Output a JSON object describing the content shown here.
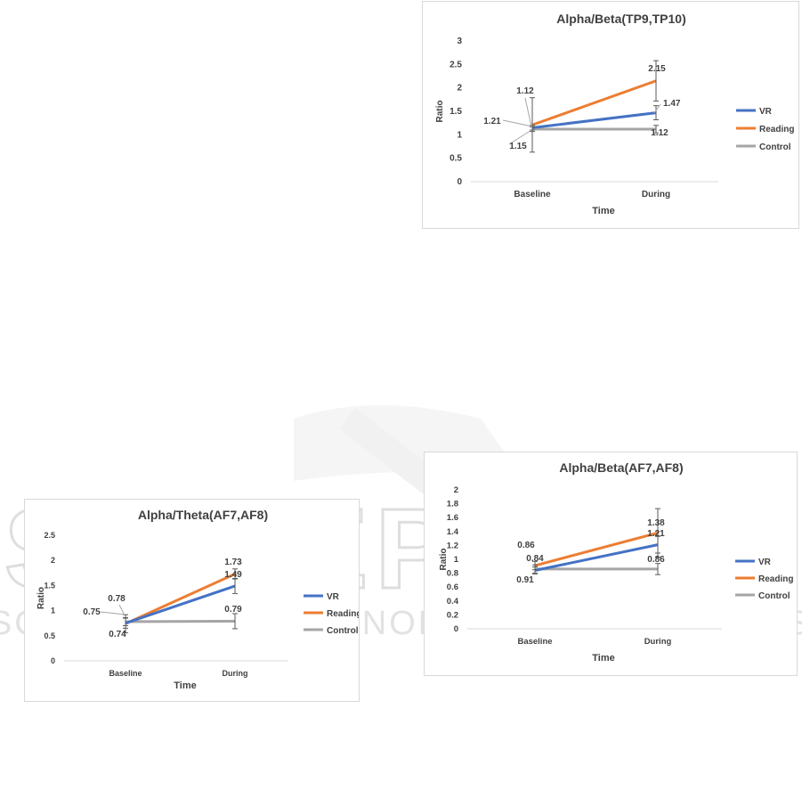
{
  "watermark": {
    "line1": "SCITEPRESS",
    "line2": "SCIENCE AND TECHNOLOGY PUBLICATIONS"
  },
  "colors": {
    "VR": "#4472c4",
    "Reading": "#ed7d31",
    "Control": "#a5a5a5"
  },
  "chart_data": [
    {
      "id": "chart-alpha-beta-tp",
      "type": "line",
      "title": "Alpha/Beta(TP9,TP10)",
      "xlabel": "Time",
      "ylabel": "Ratio",
      "categories": [
        "Baseline",
        "During"
      ],
      "yticks": [
        "0",
        "0.5",
        "1",
        "1.5",
        "2",
        "2.5",
        "3"
      ],
      "ylim": [
        0,
        3
      ],
      "ystep": 0.5,
      "grid": false,
      "legend_position": "right",
      "series": [
        {
          "name": "VR",
          "values": [
            1.15,
            1.47
          ],
          "errors": [
            0.05,
            0.15
          ],
          "labels": [
            "1.15",
            "1.47"
          ]
        },
        {
          "name": "Reading",
          "values": [
            1.21,
            2.15
          ],
          "errors": [
            0.58,
            0.43
          ],
          "labels": [
            "1.21",
            "2.15"
          ]
        },
        {
          "name": "Control",
          "values": [
            1.12,
            1.12
          ],
          "errors": [
            0.05,
            0.08
          ],
          "labels": [
            "1.12",
            "1.12"
          ]
        }
      ]
    },
    {
      "id": "chart-alpha-theta-af",
      "type": "line",
      "title": "Alpha/Theta(AF7,AF8)",
      "xlabel": "Time",
      "ylabel": "Ratio",
      "categories": [
        "Baseline",
        "During"
      ],
      "yticks": [
        "0",
        "0.5",
        "1",
        "1.5",
        "2",
        "2.5"
      ],
      "ylim": [
        0,
        2.5
      ],
      "ystep": 0.5,
      "grid": false,
      "legend_position": "right",
      "series": [
        {
          "name": "VR",
          "values": [
            0.75,
            1.49
          ],
          "errors": [
            0.1,
            0.15
          ],
          "labels": [
            "0.75",
            "1.49"
          ]
        },
        {
          "name": "Reading",
          "values": [
            0.74,
            1.73
          ],
          "errors": [
            0.18,
            0.1
          ],
          "labels": [
            "0.74",
            "1.73"
          ]
        },
        {
          "name": "Control",
          "values": [
            0.78,
            0.79
          ],
          "errors": [
            0.08,
            0.15
          ],
          "labels": [
            "0.78",
            "0.79"
          ]
        }
      ]
    },
    {
      "id": "chart-alpha-beta-af",
      "type": "line",
      "title": "Alpha/Beta(AF7,AF8)",
      "xlabel": "Time",
      "ylabel": "Ratio",
      "categories": [
        "Baseline",
        "During"
      ],
      "yticks": [
        "0",
        "0.2",
        "0.4",
        "0.6",
        "0.8",
        "1",
        "1.2",
        "1.4",
        "1.6",
        "1.8",
        "2"
      ],
      "ylim": [
        0,
        2
      ],
      "ystep": 0.2,
      "grid": false,
      "legend_position": "right",
      "series": [
        {
          "name": "VR",
          "values": [
            0.84,
            1.21
          ],
          "errors": [
            0.05,
            0.12
          ],
          "labels": [
            "0.84",
            "1.21"
          ]
        },
        {
          "name": "Reading",
          "values": [
            0.91,
            1.38
          ],
          "errors": [
            0.06,
            0.35
          ],
          "labels": [
            "0.91",
            "1.38"
          ]
        },
        {
          "name": "Control",
          "values": [
            0.86,
            0.86
          ],
          "errors": [
            0.06,
            0.08
          ],
          "labels": [
            "0.86",
            "0.86"
          ]
        }
      ]
    }
  ]
}
